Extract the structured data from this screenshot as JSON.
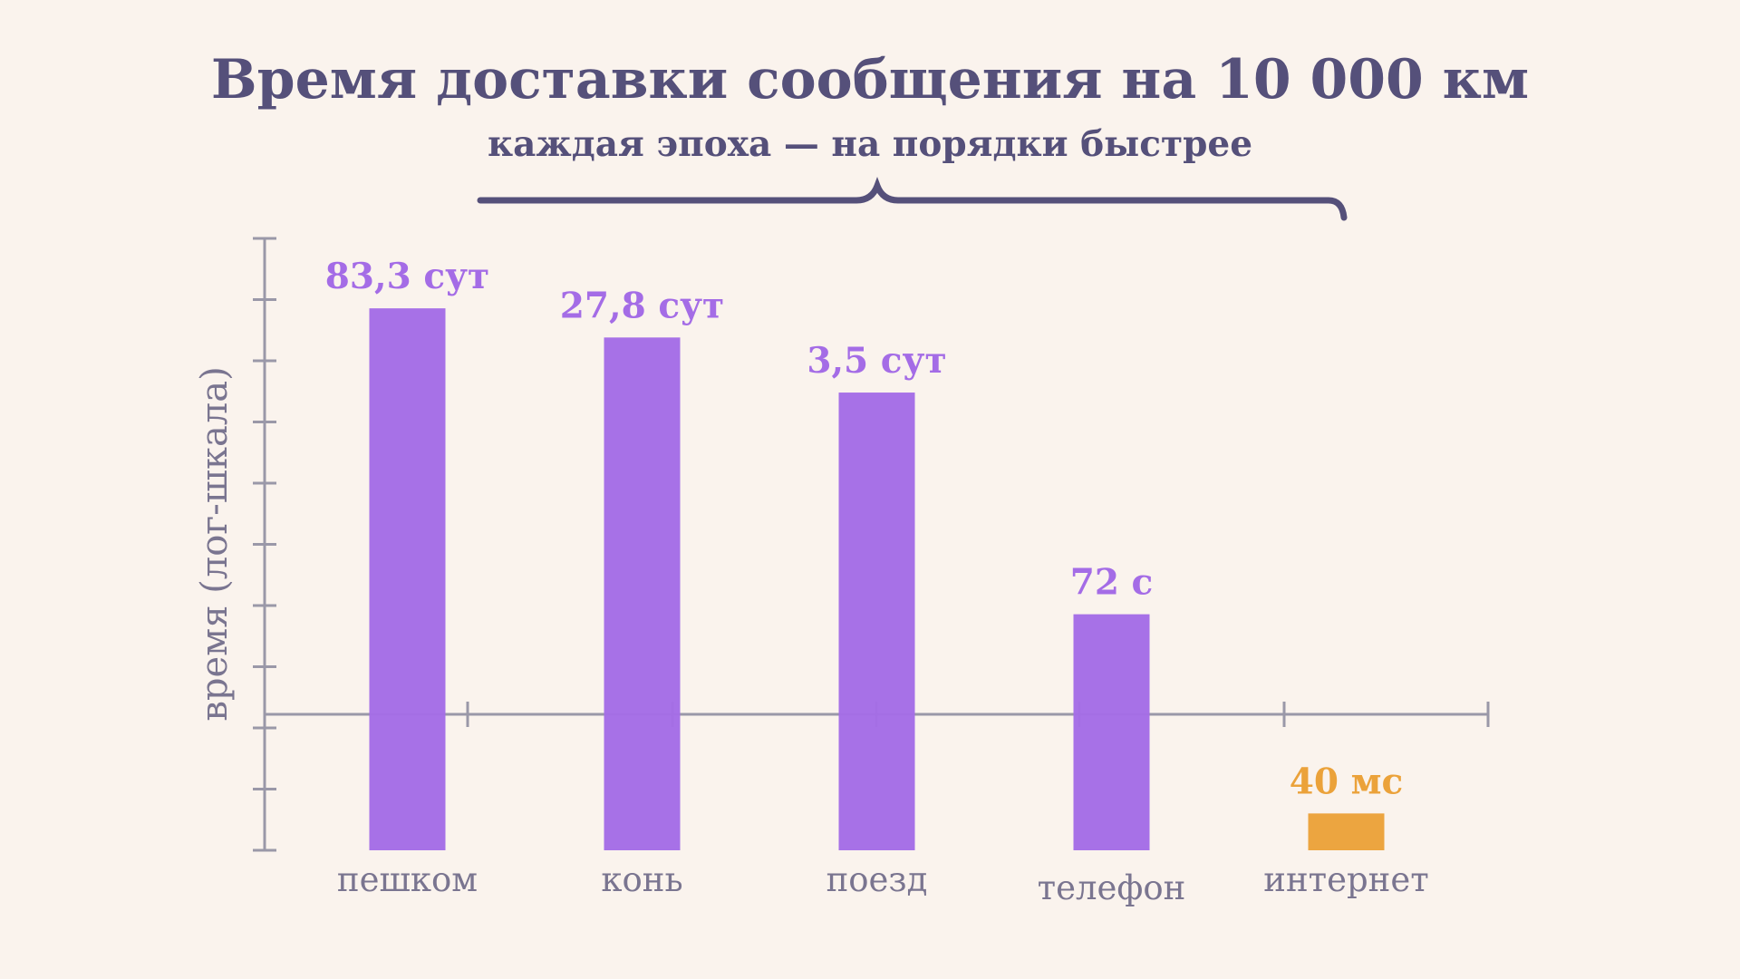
{
  "title": "Время доставки сообщения на 10 000 км",
  "subtitle": "каждая эпоха — на порядки быстрее",
  "colors": {
    "background": "#faf3ed",
    "primary": "#a46ce6",
    "highlight": "#eba23a",
    "text": "#55507a",
    "axis": "#9a98a8"
  },
  "chart_data": {
    "type": "bar",
    "title": "Время доставки сообщения на 10 000 км",
    "subtitle": "каждая эпоха — на порядки быстрее",
    "xlabel": "",
    "ylabel": "время (лог-шкала)",
    "yscale": "log",
    "y_unit": "seconds",
    "ylim": [
      0.01,
      100000000
    ],
    "grid": false,
    "categories": [
      "пешком",
      "конь",
      "поезд",
      "телефон",
      "интернет"
    ],
    "values": [
      7197120,
      2401920,
      302400,
      72,
      0.04
    ],
    "data_labels": [
      "83,3 сут",
      "27,8 сут",
      "3,5 сут",
      "72 с",
      "40 мс"
    ],
    "highlight_index": 4
  }
}
